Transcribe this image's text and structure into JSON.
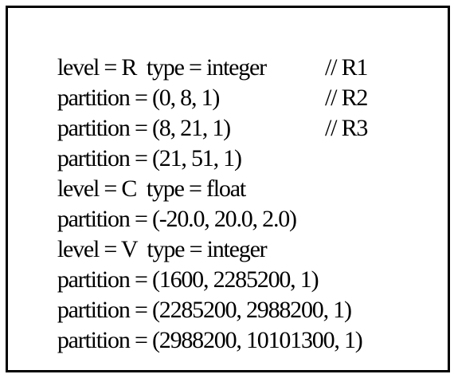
{
  "lines": [
    {
      "text": "level = R  type = integer",
      "comment": ""
    },
    {
      "text": "partition = (0, 8, 1)",
      "comment": "// R1"
    },
    {
      "text": "partition = (8, 21, 1)",
      "comment": "// R2"
    },
    {
      "text": "partition = (21, 51, 1)",
      "comment": "// R3"
    },
    {
      "text": "level = C  type = float",
      "comment": ""
    },
    {
      "text": "partition = (-20.0, 20.0, 2.0)",
      "comment": ""
    },
    {
      "text": "level = V  type = integer",
      "comment": ""
    },
    {
      "text": "partition = (1600, 2285200, 1)",
      "comment": ""
    },
    {
      "text": "partition = (2285200, 2988200, 1)",
      "comment": ""
    },
    {
      "text": "partition = (2988200, 10101300, 1)",
      "comment": ""
    }
  ]
}
